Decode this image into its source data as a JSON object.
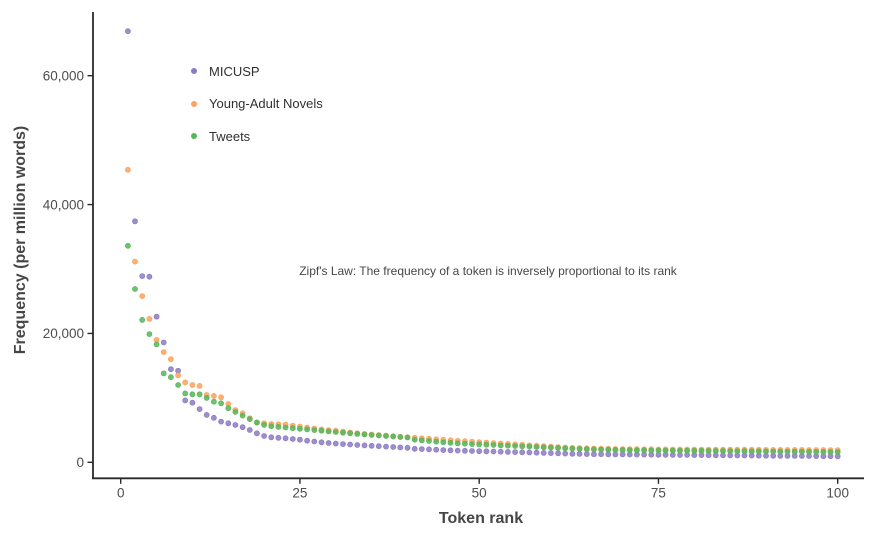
{
  "chart_data": {
    "type": "scatter",
    "title": "",
    "xlabel": "Token rank",
    "ylabel": "Frequency (per million words)",
    "annotation": "Zipf's Law: The frequency of a token is inversely proportional to its rank",
    "grid": false,
    "legend_position": "inside-top-left",
    "xlim": [
      0,
      104
    ],
    "ylim": [
      0,
      70000
    ],
    "x_ticks": {
      "values": [
        0,
        25,
        50,
        75,
        100
      ],
      "labels": [
        "0",
        "25",
        "50",
        "75",
        "100"
      ]
    },
    "y_ticks": {
      "values": [
        0,
        20000,
        40000,
        60000
      ],
      "labels": [
        "0",
        "20,000",
        "40,000",
        "60,000"
      ]
    },
    "x_description": "Token rank, integer ranks 1-100 for each series",
    "series": [
      {
        "name": "MICUSP",
        "color": "#8C7BC3",
        "values": [
          66900,
          37400,
          28900,
          28800,
          22600,
          18600,
          14450,
          14200,
          9600,
          9250,
          8250,
          7350,
          6900,
          6310,
          6060,
          5790,
          5440,
          5020,
          4500,
          4080,
          3880,
          3800,
          3730,
          3610,
          3500,
          3360,
          3230,
          3100,
          3000,
          2900,
          2830,
          2760,
          2690,
          2620,
          2560,
          2500,
          2430,
          2370,
          2310,
          2250,
          2100,
          2050,
          2000,
          1950,
          1900,
          1860,
          1820,
          1790,
          1760,
          1730,
          1700,
          1670,
          1640,
          1610,
          1580,
          1550,
          1520,
          1490,
          1460,
          1430,
          1400,
          1350,
          1320,
          1300,
          1280,
          1260,
          1250,
          1240,
          1230,
          1220,
          1210,
          1200,
          1190,
          1180,
          1170,
          1160,
          1150,
          1140,
          1130,
          1120,
          1110,
          1100,
          1090,
          1080,
          1070,
          1060,
          1050,
          1040,
          1030,
          1020,
          1010,
          1000,
          1000,
          990,
          980,
          970,
          960,
          950,
          940,
          930
        ]
      },
      {
        "name": "Young-Adult Novels",
        "color": "#FBA35C",
        "values": [
          45400,
          31150,
          25800,
          22250,
          19000,
          17100,
          16000,
          13500,
          12400,
          12000,
          11850,
          10450,
          10300,
          10090,
          9050,
          8120,
          7600,
          6830,
          6150,
          6060,
          5950,
          5900,
          5850,
          5700,
          5550,
          5400,
          5250,
          5100,
          5000,
          4900,
          4760,
          4630,
          4500,
          4410,
          4320,
          4230,
          4140,
          4050,
          3960,
          3880,
          3800,
          3720,
          3640,
          3570,
          3490,
          3410,
          3340,
          3270,
          3200,
          3130,
          3060,
          2990,
          2920,
          2850,
          2780,
          2710,
          2640,
          2570,
          2500,
          2430,
          2360,
          2290,
          2240,
          2200,
          2170,
          2140,
          2110,
          2090,
          2070,
          2050,
          2040,
          2030,
          2020,
          2010,
          2000,
          2000,
          1990,
          1990,
          1980,
          1980,
          1970,
          1970,
          1960,
          1960,
          1950,
          1950,
          1950,
          1940,
          1940,
          1930,
          1930,
          1930,
          1920,
          1920,
          1920,
          1910,
          1910,
          1910,
          1900,
          1900
        ]
      },
      {
        "name": "Tweets",
        "color": "#57B65B",
        "values": [
          33600,
          26900,
          22100,
          19900,
          18300,
          13800,
          13200,
          12000,
          10700,
          10560,
          10560,
          10000,
          9400,
          9160,
          8390,
          7800,
          7250,
          6700,
          6200,
          5800,
          5600,
          5500,
          5400,
          5300,
          5200,
          5100,
          5000,
          4900,
          4800,
          4700,
          4600,
          4500,
          4400,
          4320,
          4240,
          4160,
          4080,
          4000,
          3930,
          3860,
          3500,
          3400,
          3300,
          3200,
          3100,
          3020,
          2950,
          2890,
          2830,
          2780,
          2730,
          2680,
          2630,
          2580,
          2530,
          2480,
          2430,
          2380,
          2330,
          2280,
          2230,
          2180,
          2130,
          2080,
          2040,
          2000,
          1970,
          1950,
          1930,
          1910,
          1890,
          1870,
          1860,
          1850,
          1840,
          1830,
          1820,
          1810,
          1800,
          1790,
          1780,
          1770,
          1760,
          1750,
          1740,
          1730,
          1720,
          1710,
          1700,
          1690,
          1680,
          1670,
          1660,
          1650,
          1640,
          1630,
          1620,
          1610,
          1600,
          1590
        ]
      }
    ]
  }
}
